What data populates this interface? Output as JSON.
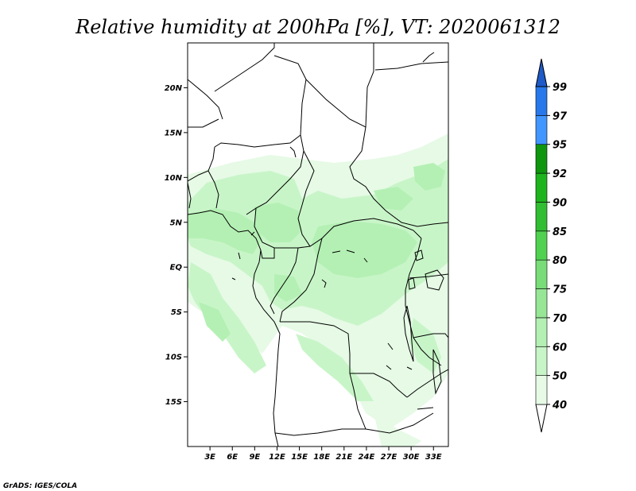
{
  "title": "Relative humidity at 200hPa [%], VT: 2020061312",
  "credit": "GrADS: IGES/COLA",
  "map": {
    "lon_range": [
      0,
      35
    ],
    "lat_range": [
      -20,
      25
    ],
    "lat_ticks": [
      {
        "value": 20,
        "label": "20N"
      },
      {
        "value": 15,
        "label": "15N"
      },
      {
        "value": 10,
        "label": "10N"
      },
      {
        "value": 5,
        "label": "5N"
      },
      {
        "value": 0,
        "label": "EQ"
      },
      {
        "value": -5,
        "label": "5S"
      },
      {
        "value": -10,
        "label": "10S"
      },
      {
        "value": -15,
        "label": "15S"
      }
    ],
    "lon_ticks": [
      {
        "value": 3,
        "label": "3E"
      },
      {
        "value": 6,
        "label": "6E"
      },
      {
        "value": 9,
        "label": "9E"
      },
      {
        "value": 12,
        "label": "12E"
      },
      {
        "value": 15,
        "label": "15E"
      },
      {
        "value": 18,
        "label": "18E"
      },
      {
        "value": 21,
        "label": "21E"
      },
      {
        "value": 24,
        "label": "24E"
      },
      {
        "value": 27,
        "label": "27E"
      },
      {
        "value": 30,
        "label": "30E"
      },
      {
        "value": 33,
        "label": "33E"
      }
    ]
  },
  "colorbar": {
    "levels": [
      {
        "label": "40",
        "color": "#e6fae6"
      },
      {
        "label": "50",
        "color": "#c8f5c8"
      },
      {
        "label": "60",
        "color": "#b4f0b4"
      },
      {
        "label": "70",
        "color": "#96e696"
      },
      {
        "label": "75",
        "color": "#78dc78"
      },
      {
        "label": "80",
        "color": "#50d250"
      },
      {
        "label": "85",
        "color": "#32be32"
      },
      {
        "label": "90",
        "color": "#1eb41e"
      },
      {
        "label": "92",
        "color": "#0f960f"
      },
      {
        "label": "95",
        "color": "#4196ff"
      },
      {
        "label": "97",
        "color": "#2878eb"
      },
      {
        "label": "99",
        "color": "#1e5ac8"
      }
    ],
    "below_color": "#ffffff",
    "above_color": "#1e5ac8"
  },
  "fields": {
    "colors": {
      "light": "#e6fae6",
      "mid": "#c8f5c8",
      "strong": "#b4f0b4"
    }
  }
}
